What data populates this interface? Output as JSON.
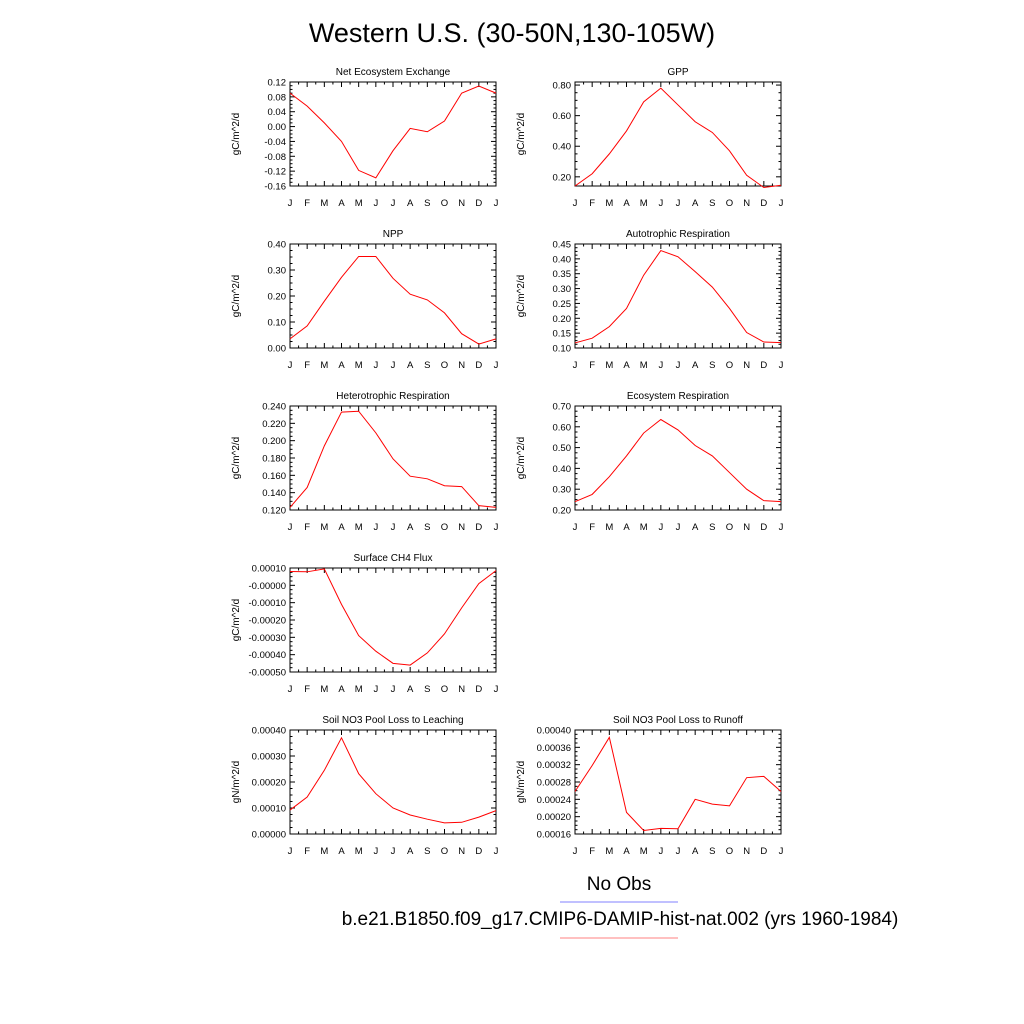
{
  "title": "Western U.S. (30-50N,130-105W)",
  "legend": {
    "obs_label": "No Obs",
    "obs_color": "#8080ff",
    "model_label": "b.e21.B1850.f09_g17.CMIP6-DAMIP-hist-nat.002 (yrs 1960-1984)",
    "model_color": "#ff8080"
  },
  "series_color": "#ff0000",
  "chart_data": [
    {
      "type": "line",
      "title": "Net Ecosystem Exchange",
      "ylabel": "gC/m^2/d",
      "categories": [
        "J",
        "F",
        "M",
        "A",
        "M",
        "J",
        "J",
        "A",
        "S",
        "O",
        "N",
        "D",
        "J"
      ],
      "ylim": [
        -0.16,
        0.12
      ],
      "yticks": [
        "0.12",
        "0.08",
        "0.04",
        "0.00",
        "-0.04",
        "-0.08",
        "-0.12",
        "-0.16"
      ],
      "values": [
        0.09,
        0.055,
        0.01,
        -0.04,
        -0.118,
        -0.138,
        -0.065,
        -0.005,
        -0.014,
        0.015,
        0.09,
        0.109,
        0.09
      ]
    },
    {
      "type": "line",
      "title": "GPP",
      "ylabel": "gC/m^2/d",
      "categories": [
        "J",
        "F",
        "M",
        "A",
        "M",
        "J",
        "J",
        "A",
        "S",
        "O",
        "N",
        "D",
        "J"
      ],
      "ylim": [
        0.14,
        0.82
      ],
      "yticks": [
        "0.80",
        "0.60",
        "0.40",
        "0.20"
      ],
      "values": [
        0.14,
        0.22,
        0.35,
        0.5,
        0.69,
        0.78,
        0.67,
        0.56,
        0.49,
        0.37,
        0.21,
        0.13,
        0.145
      ]
    },
    {
      "type": "line",
      "title": "NPP",
      "ylabel": "gC/m^2/d",
      "categories": [
        "J",
        "F",
        "M",
        "A",
        "M",
        "J",
        "J",
        "A",
        "S",
        "O",
        "N",
        "D",
        "J"
      ],
      "ylim": [
        0.0,
        0.4
      ],
      "yticks": [
        "0.40",
        "0.30",
        "0.20",
        "0.10",
        "0.00"
      ],
      "values": [
        0.035,
        0.085,
        0.18,
        0.272,
        0.352,
        0.352,
        0.268,
        0.207,
        0.185,
        0.135,
        0.055,
        0.015,
        0.035
      ]
    },
    {
      "type": "line",
      "title": "Autotrophic Respiration",
      "ylabel": "gC/m^2/d",
      "categories": [
        "J",
        "F",
        "M",
        "A",
        "M",
        "J",
        "J",
        "A",
        "S",
        "O",
        "N",
        "D",
        "J"
      ],
      "ylim": [
        0.1,
        0.45
      ],
      "yticks": [
        "0.45",
        "0.40",
        "0.35",
        "0.30",
        "0.25",
        "0.20",
        "0.15",
        "0.10"
      ],
      "values": [
        0.117,
        0.133,
        0.172,
        0.233,
        0.345,
        0.428,
        0.407,
        0.357,
        0.305,
        0.233,
        0.152,
        0.12,
        0.118
      ]
    },
    {
      "type": "line",
      "title": "Heterotrophic Respiration",
      "ylabel": "gC/m^2/d",
      "categories": [
        "J",
        "F",
        "M",
        "A",
        "M",
        "J",
        "J",
        "A",
        "S",
        "O",
        "N",
        "D",
        "J"
      ],
      "ylim": [
        0.12,
        0.24
      ],
      "yticks": [
        "0.240",
        "0.220",
        "0.200",
        "0.180",
        "0.160",
        "0.140",
        "0.120"
      ],
      "values": [
        0.123,
        0.146,
        0.194,
        0.233,
        0.234,
        0.209,
        0.179,
        0.159,
        0.156,
        0.148,
        0.147,
        0.125,
        0.123
      ]
    },
    {
      "type": "line",
      "title": "Ecosystem Respiration",
      "ylabel": "gC/m^2/d",
      "categories": [
        "J",
        "F",
        "M",
        "A",
        "M",
        "J",
        "J",
        "A",
        "S",
        "O",
        "N",
        "D",
        "J"
      ],
      "ylim": [
        0.2,
        0.7
      ],
      "yticks": [
        "0.70",
        "0.60",
        "0.50",
        "0.40",
        "0.30",
        "0.20"
      ],
      "values": [
        0.24,
        0.275,
        0.36,
        0.46,
        0.57,
        0.635,
        0.585,
        0.51,
        0.46,
        0.38,
        0.3,
        0.245,
        0.24
      ]
    },
    {
      "type": "line",
      "title": "Surface CH4 Flux",
      "ylabel": "gC/m^2/d",
      "categories": [
        "J",
        "F",
        "M",
        "A",
        "M",
        "J",
        "J",
        "A",
        "S",
        "O",
        "N",
        "D",
        "J"
      ],
      "ylim": [
        -0.0005,
        0.0001
      ],
      "yticks": [
        "0.00010",
        "-0.00000",
        "-0.00010",
        "-0.00020",
        "-0.00030",
        "-0.00040",
        "-0.00050"
      ],
      "values": [
        8e-05,
        7.8e-05,
        9.5e-05,
        -0.00011,
        -0.00029,
        -0.00038,
        -0.00045,
        -0.00046,
        -0.00039,
        -0.00028,
        -0.00013,
        1e-05,
        8.5e-05
      ]
    },
    {
      "type": "line",
      "title": "Soil NO3 Pool Loss to Leaching",
      "ylabel": "gN/m^2/d",
      "categories": [
        "J",
        "F",
        "M",
        "A",
        "M",
        "J",
        "J",
        "A",
        "S",
        "O",
        "N",
        "D",
        "J"
      ],
      "ylim": [
        0.0,
        0.0004
      ],
      "yticks": [
        "0.00040",
        "0.00030",
        "0.00020",
        "0.00010",
        "0.00000"
      ],
      "values": [
        9.2e-05,
        0.000142,
        0.000245,
        0.00037,
        0.000232,
        0.000155,
        0.0001,
        7.3e-05,
        5.7e-05,
        4.3e-05,
        4.5e-05,
        6.5e-05,
        9e-05
      ]
    },
    {
      "type": "line",
      "title": "Soil NO3 Pool Loss to Runoff",
      "ylabel": "gN/m^2/d",
      "categories": [
        "J",
        "F",
        "M",
        "A",
        "M",
        "J",
        "J",
        "A",
        "S",
        "O",
        "N",
        "D",
        "J"
      ],
      "ylim": [
        0.00016,
        0.0004
      ],
      "yticks": [
        "0.00040",
        "0.00036",
        "0.00032",
        "0.00028",
        "0.00024",
        "0.00020",
        "0.00016"
      ],
      "values": [
        0.000258,
        0.000318,
        0.000383,
        0.00021,
        0.000168,
        0.000173,
        0.000172,
        0.00024,
        0.000229,
        0.000225,
        0.00029,
        0.000293,
        0.000258
      ]
    }
  ]
}
